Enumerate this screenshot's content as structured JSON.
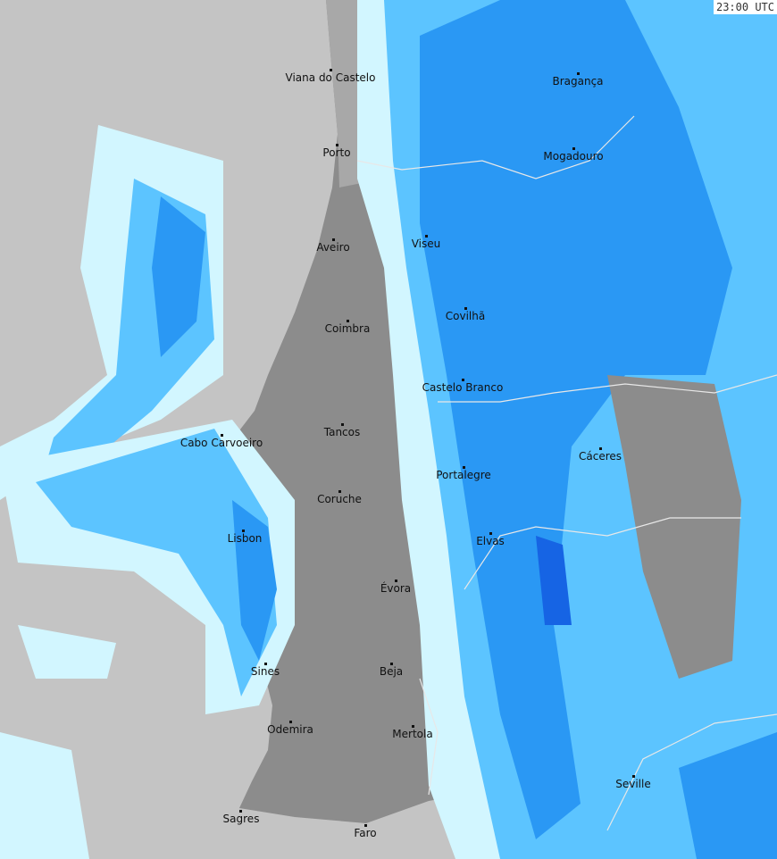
{
  "timestamp": "23:00 UTC",
  "colors": {
    "sea": "#c4c4c4",
    "land": "#8c8c8c",
    "land_light": "#a8a8a8",
    "rain_light": "#d2f6ff",
    "rain_mid": "#5cc4ff",
    "rain": "#2a98f4",
    "rain_heavy": "#1664e4",
    "border": "#e8e8e8"
  },
  "cities": [
    {
      "name": "Viana do Castelo",
      "dot": [
        370,
        78
      ],
      "label": [
        370,
        80
      ]
    },
    {
      "name": "Bragança",
      "dot": [
        647,
        82
      ],
      "label": [
        647,
        84
      ]
    },
    {
      "name": "Porto",
      "dot": [
        377,
        162
      ],
      "label": [
        377,
        164
      ]
    },
    {
      "name": "Mogadouro",
      "dot": [
        642,
        166
      ],
      "label": [
        642,
        168
      ]
    },
    {
      "name": "Aveiro",
      "dot": [
        373,
        268
      ],
      "label": [
        373,
        270
      ]
    },
    {
      "name": "Viseu",
      "dot": [
        477,
        264
      ],
      "label": [
        477,
        266
      ]
    },
    {
      "name": "Covilhã",
      "dot": [
        521,
        345
      ],
      "label": [
        521,
        347
      ]
    },
    {
      "name": "Coimbra",
      "dot": [
        389,
        359
      ],
      "label": [
        389,
        361
      ]
    },
    {
      "name": "Castelo Branco",
      "dot": [
        518,
        425
      ],
      "label": [
        518,
        427
      ]
    },
    {
      "name": "Tancos",
      "dot": [
        383,
        475
      ],
      "label": [
        383,
        477
      ]
    },
    {
      "name": "Cabo Carvoeiro",
      "dot": [
        248,
        487
      ],
      "label": [
        248,
        489
      ]
    },
    {
      "name": "Cáceres",
      "dot": [
        672,
        502
      ],
      "label": [
        672,
        504
      ]
    },
    {
      "name": "Portalegre",
      "dot": [
        519,
        523
      ],
      "label": [
        519,
        525
      ]
    },
    {
      "name": "Coruche",
      "dot": [
        380,
        550
      ],
      "label": [
        380,
        552
      ]
    },
    {
      "name": "Lisbon",
      "dot": [
        272,
        594
      ],
      "label": [
        274,
        596
      ]
    },
    {
      "name": "Elvas",
      "dot": [
        549,
        597
      ],
      "label": [
        549,
        599
      ]
    },
    {
      "name": "Évora",
      "dot": [
        443,
        650
      ],
      "label": [
        443,
        652
      ]
    },
    {
      "name": "Sines",
      "dot": [
        297,
        743
      ],
      "label": [
        297,
        745
      ]
    },
    {
      "name": "Beja",
      "dot": [
        438,
        743
      ],
      "label": [
        438,
        745
      ]
    },
    {
      "name": "Odemira",
      "dot": [
        325,
        808
      ],
      "label": [
        325,
        810
      ]
    },
    {
      "name": "Mertola",
      "dot": [
        462,
        813
      ],
      "label": [
        462,
        815
      ]
    },
    {
      "name": "Seville",
      "dot": [
        709,
        869
      ],
      "label": [
        709,
        871
      ]
    },
    {
      "name": "Sagres",
      "dot": [
        269,
        908
      ],
      "label": [
        270,
        910
      ]
    },
    {
      "name": "Faro",
      "dot": [
        409,
        924
      ],
      "label": [
        409,
        926
      ]
    }
  ]
}
